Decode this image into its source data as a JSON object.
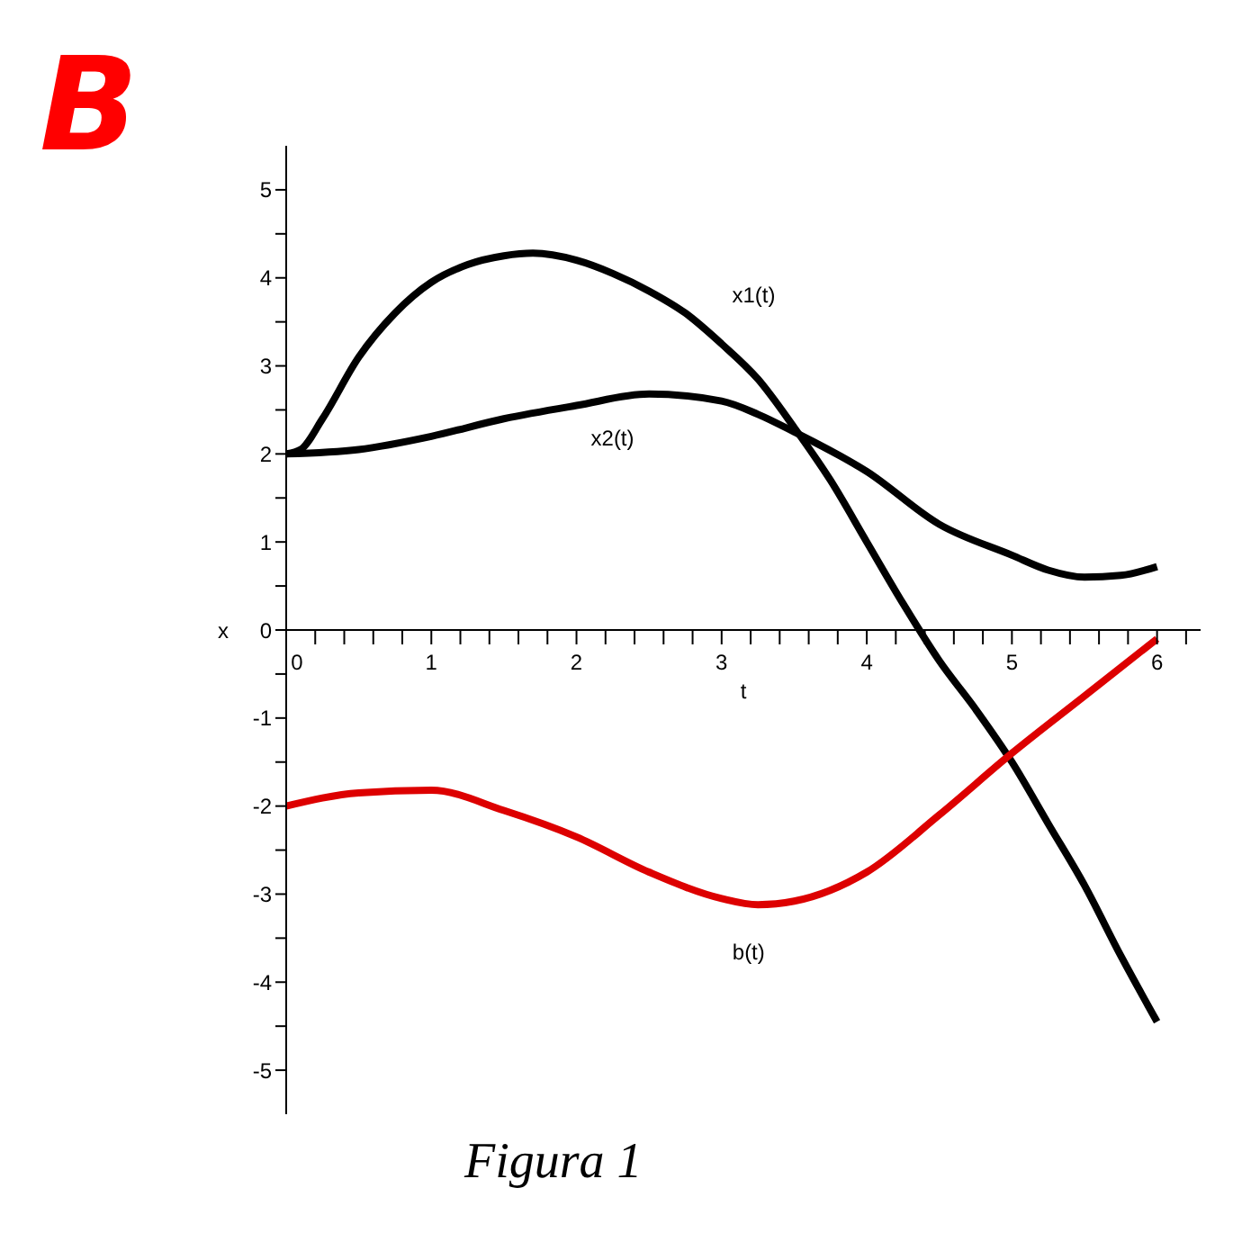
{
  "chart_data": {
    "type": "line",
    "title": "B",
    "xlabel": "t",
    "ylabel": "x",
    "xlim": [
      0,
      6.3
    ],
    "ylim": [
      -5.5,
      5.5
    ],
    "xticks": [
      0,
      {
        "value": 0.2,
        "label": null
      },
      {
        "value": 0.4,
        "label": null
      },
      {
        "value": 0.6,
        "label": null
      },
      {
        "value": 0.8,
        "label": null
      },
      1,
      {
        "value": 1.2,
        "label": null
      },
      {
        "value": 1.4,
        "label": null
      },
      {
        "value": 1.6,
        "label": null
      },
      {
        "value": 1.8,
        "label": null
      },
      2,
      {
        "value": 2.2,
        "label": null
      },
      {
        "value": 2.4,
        "label": null
      },
      {
        "value": 2.6,
        "label": null
      },
      {
        "value": 2.8,
        "label": null
      },
      3,
      {
        "value": 3.2,
        "label": null
      },
      {
        "value": 3.4,
        "label": null
      },
      {
        "value": 3.6,
        "label": null
      },
      {
        "value": 3.8,
        "label": null
      },
      4,
      {
        "value": 4.2,
        "label": null
      },
      {
        "value": 4.4,
        "label": null
      },
      {
        "value": 4.6,
        "label": null
      },
      {
        "value": 4.8,
        "label": null
      },
      5,
      {
        "value": 5.2,
        "label": null
      },
      {
        "value": 5.4,
        "label": null
      },
      {
        "value": 5.6,
        "label": null
      },
      {
        "value": 5.8,
        "label": null
      },
      6,
      {
        "value": 6.2,
        "label": null
      }
    ],
    "yticks": [
      -5,
      {
        "value": -4.5,
        "label": null
      },
      -4,
      {
        "value": -3.5,
        "label": null
      },
      -3,
      {
        "value": -2.5,
        "label": null
      },
      -2,
      {
        "value": -1.5,
        "label": null
      },
      -1,
      {
        "value": -0.5,
        "label": null
      },
      0,
      {
        "value": 0.5,
        "label": null
      },
      1,
      {
        "value": 1.5,
        "label": null
      },
      2,
      {
        "value": 2.5,
        "label": null
      },
      3,
      {
        "value": 3.5,
        "label": null
      },
      4,
      {
        "value": 4.5,
        "label": null
      },
      5
    ],
    "series": [
      {
        "name": "x1(t)",
        "color": "#000000",
        "x": [
          0,
          0.1,
          0.25,
          0.5,
          0.75,
          1,
          1.25,
          1.5,
          1.7,
          2,
          2.25,
          2.5,
          2.75,
          3,
          3.25,
          3.5,
          3.75,
          4,
          4.25,
          4.5,
          4.75,
          5,
          5.25,
          5.5,
          5.75,
          6
        ],
        "values": [
          2,
          2.05,
          2.4,
          3.1,
          3.6,
          3.95,
          4.15,
          4.25,
          4.28,
          4.2,
          4.05,
          3.85,
          3.6,
          3.25,
          2.85,
          2.3,
          1.7,
          1.0,
          0.3,
          -0.35,
          -0.9,
          -1.5,
          -2.2,
          -2.9,
          -3.7,
          -4.45
        ]
      },
      {
        "name": "x2(t)",
        "color": "#000000",
        "x": [
          0,
          0.5,
          1,
          1.5,
          2,
          2.5,
          3,
          3.25,
          3.5,
          4,
          4.5,
          5,
          5.25,
          5.5,
          5.75,
          6
        ],
        "values": [
          2,
          2.05,
          2.2,
          2.4,
          2.55,
          2.68,
          2.6,
          2.45,
          2.25,
          1.8,
          1.2,
          0.85,
          0.68,
          0.6,
          0.62,
          0.72
        ]
      },
      {
        "name": "b(t)",
        "color": "#dd0000",
        "x": [
          0,
          0.5,
          1,
          1.5,
          2,
          2.5,
          3,
          3.25,
          3.5,
          4,
          4.5,
          5,
          5.5,
          6
        ],
        "values": [
          -2,
          -1.85,
          -1.82,
          -2.05,
          -2.35,
          -2.75,
          -3.05,
          -3.12,
          -3.08,
          -2.75,
          -2.1,
          -1.4,
          -0.75,
          -0.1
        ]
      }
    ],
    "annotations": [
      "Figura 1"
    ]
  }
}
